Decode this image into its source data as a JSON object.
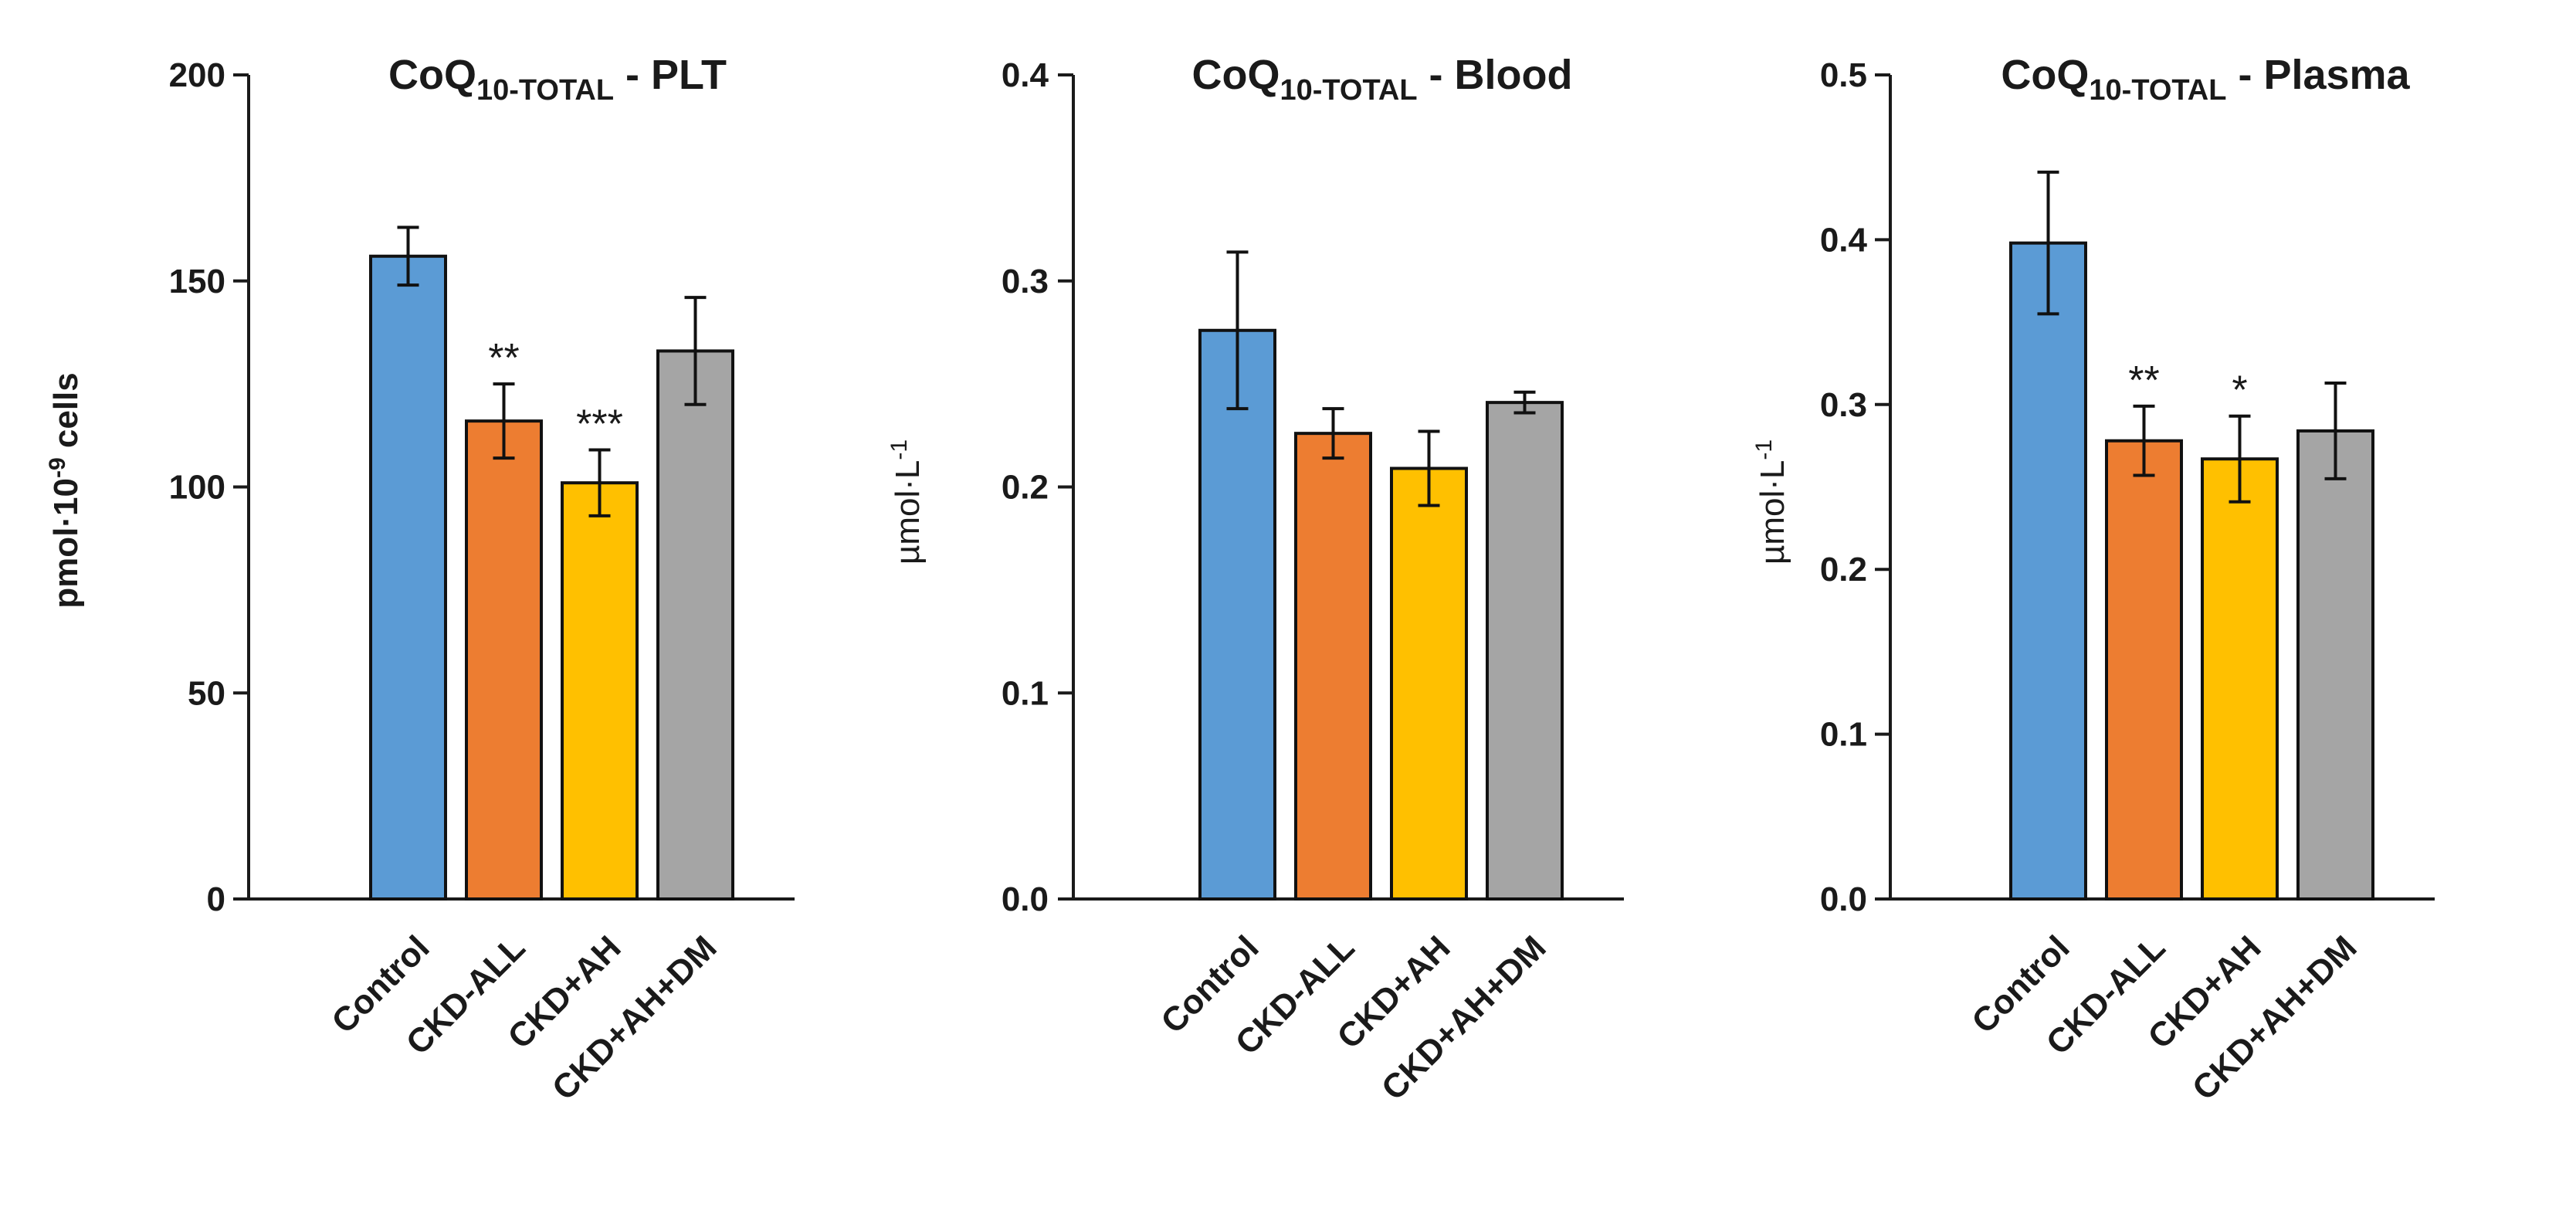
{
  "colors": {
    "Control": "#5b9bd5",
    "CKD-ALL": "#ed7d31",
    "CKD+AH": "#ffc000",
    "CKD+AH+DM": "#a5a5a5"
  },
  "chart_data": [
    {
      "type": "bar",
      "title_main": "CoQ",
      "title_sub": "10-TOTAL",
      "title_rest": " - PLT",
      "ylabel_main": "pmol·10",
      "ylabel_sup": "-9",
      "ylabel_rest": " cells",
      "categories": [
        "Control",
        "CKD-ALL",
        "CKD+AH",
        "CKD+AH+DM"
      ],
      "values": [
        156,
        116,
        101,
        133
      ],
      "errors": [
        7,
        9,
        8,
        13
      ],
      "significance": [
        "",
        "**",
        "***",
        ""
      ],
      "ylim": [
        0,
        200
      ],
      "yticks": [
        0,
        50,
        100,
        150,
        200
      ],
      "yticklabels": [
        "0",
        "50",
        "100",
        "150",
        "200"
      ]
    },
    {
      "type": "bar",
      "title_main": "CoQ",
      "title_sub": "10-TOTAL",
      "title_rest": " - Blood",
      "ylabel_main": "µmol·L",
      "ylabel_sup": "-1",
      "ylabel_rest": "",
      "categories": [
        "Control",
        "CKD-ALL",
        "CKD+AH",
        "CKD+AH+DM"
      ],
      "values": [
        0.276,
        0.226,
        0.209,
        0.241
      ],
      "errors": [
        0.038,
        0.012,
        0.018,
        0.005
      ],
      "significance": [
        "",
        "",
        "",
        ""
      ],
      "ylim": [
        0,
        0.4
      ],
      "yticks": [
        0,
        0.1,
        0.2,
        0.3,
        0.4
      ],
      "yticklabels": [
        "0.0",
        "0.1",
        "0.2",
        "0.3",
        "0.4"
      ]
    },
    {
      "type": "bar",
      "title_main": "CoQ",
      "title_sub": "10-TOTAL",
      "title_rest": " - Plasma",
      "ylabel_main": "µmol·L",
      "ylabel_sup": "-1",
      "ylabel_rest": "",
      "categories": [
        "Control",
        "CKD-ALL",
        "CKD+AH",
        "CKD+AH+DM"
      ],
      "values": [
        0.398,
        0.278,
        0.267,
        0.284
      ],
      "errors": [
        0.043,
        0.021,
        0.026,
        0.029
      ],
      "significance": [
        "",
        "**",
        "*",
        ""
      ],
      "ylim": [
        0,
        0.5
      ],
      "yticks": [
        0,
        0.1,
        0.2,
        0.3,
        0.4,
        0.5
      ],
      "yticklabels": [
        "0.0",
        "0.1",
        "0.2",
        "0.3",
        "0.4",
        "0.5"
      ]
    }
  ]
}
